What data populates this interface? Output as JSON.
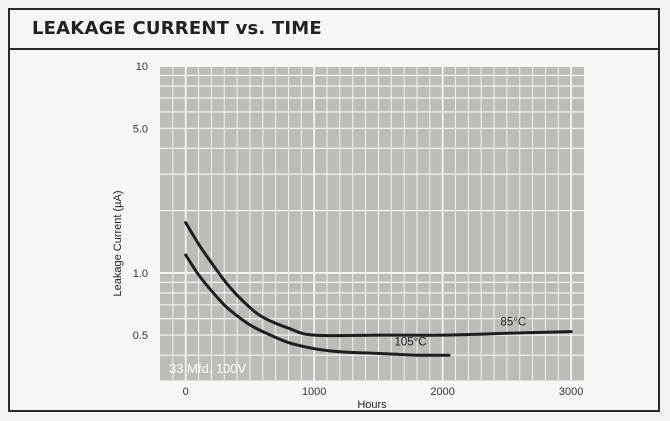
{
  "title": "LEAKAGE CURRENT vs. TIME",
  "chart_data": {
    "type": "line",
    "title": "LEAKAGE CURRENT vs. TIME",
    "xlabel": "Hours",
    "ylabel": "Leakage Current (µA)",
    "xlim": [
      -200,
      3100
    ],
    "ylim": [
      0.3,
      10
    ],
    "yscale": "log",
    "grid": true,
    "x_ticks": [
      "0",
      "1000",
      "2000",
      "3000"
    ],
    "y_ticks": [
      "0.5",
      "1.0",
      "5.0",
      "10"
    ],
    "annotation": "33 Mfd. 100V",
    "series": [
      {
        "name": "85°C",
        "x": [
          0,
          100,
          200,
          300,
          400,
          500,
          600,
          800,
          1000,
          1500,
          2000,
          2500,
          3000
        ],
        "y": [
          1.75,
          1.38,
          1.12,
          0.92,
          0.78,
          0.68,
          0.61,
          0.54,
          0.5,
          0.5,
          0.5,
          0.51,
          0.52
        ]
      },
      {
        "name": "105°C",
        "x": [
          0,
          100,
          200,
          300,
          400,
          500,
          600,
          800,
          1000,
          1200,
          1400,
          1600,
          1800,
          2000,
          2050
        ],
        "y": [
          1.22,
          0.98,
          0.82,
          0.7,
          0.62,
          0.56,
          0.52,
          0.46,
          0.43,
          0.415,
          0.41,
          0.405,
          0.4,
          0.4,
          0.4
        ]
      }
    ]
  }
}
